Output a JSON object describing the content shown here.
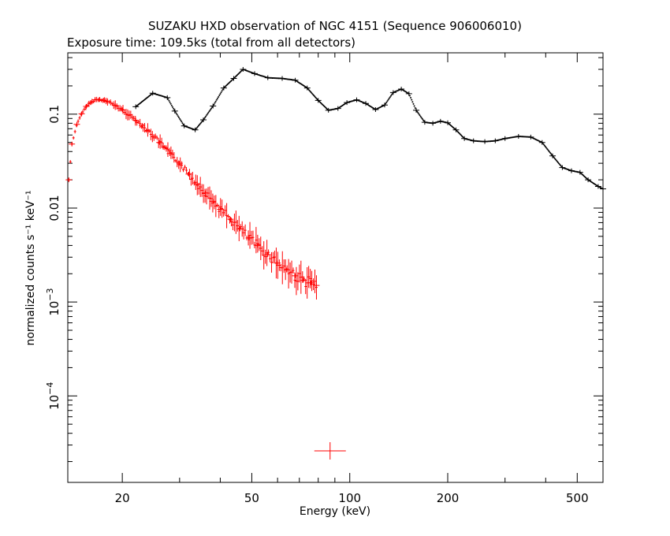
{
  "chart_data": {
    "type": "scatter",
    "title": "SUZAKU HXD observation of NGC 4151 (Sequence 906006010)",
    "subtitle": "Exposure time: 109.5ks (total from all detectors)",
    "xlabel": "Energy (keV)",
    "ylabel": "normalized counts s⁻¹ keV⁻¹",
    "x_scale": "log",
    "y_scale": "log",
    "xlim": [
      13.6,
      600
    ],
    "ylim": [
      1.2e-05,
      0.45
    ],
    "grid": false,
    "x_ticks": [
      {
        "value": 20,
        "label": "20"
      },
      {
        "value": 50,
        "label": "50"
      },
      {
        "value": 100,
        "label": "100"
      },
      {
        "value": 200,
        "label": "200"
      },
      {
        "value": 500,
        "label": "500"
      }
    ],
    "y_ticks": [
      {
        "value": 0.1,
        "label": "0.1"
      },
      {
        "value": 0.01,
        "label": "0.01"
      },
      {
        "value": 0.001,
        "base": "10",
        "exp": "−3"
      },
      {
        "value": 0.0001,
        "base": "10",
        "exp": "−4"
      }
    ],
    "series": [
      {
        "color": "#ff0000",
        "points": [
          [
            13.7,
            0.02
          ],
          [
            14.0,
            0.048
          ],
          [
            14.5,
            0.078
          ],
          [
            15.0,
            0.101
          ],
          [
            15.5,
            0.121
          ],
          [
            16.0,
            0.133
          ],
          [
            16.5,
            0.142
          ],
          [
            17.0,
            0.143
          ],
          [
            17.5,
            0.141
          ],
          [
            18.0,
            0.136
          ],
          [
            19.0,
            0.124
          ],
          [
            20.0,
            0.111
          ],
          [
            21.0,
            0.098
          ],
          [
            22.0,
            0.086
          ],
          [
            23.0,
            0.076
          ],
          [
            24.0,
            0.066
          ],
          [
            25.0,
            0.058
          ],
          [
            26.0,
            0.05
          ],
          [
            27.0,
            0.044
          ],
          [
            28.0,
            0.038
          ],
          [
            30.0,
            0.03
          ],
          [
            32.0,
            0.023
          ],
          [
            34.0,
            0.018
          ],
          [
            36.0,
            0.0145
          ],
          [
            38.0,
            0.0118
          ],
          [
            40.0,
            0.0097
          ],
          [
            43.0,
            0.0076
          ],
          [
            46.0,
            0.006
          ],
          [
            49.0,
            0.0048
          ],
          [
            52.0,
            0.004
          ],
          [
            56.0,
            0.0032
          ],
          [
            60.0,
            0.0026
          ],
          [
            64.0,
            0.0022
          ],
          [
            68.0,
            0.0019
          ],
          [
            72.0,
            0.0017
          ],
          [
            76.0,
            0.0016
          ],
          [
            79.0,
            0.0015
          ]
        ]
      },
      {
        "color": "#000000",
        "points": [
          [
            22.0,
            0.12
          ],
          [
            24.8,
            0.167
          ],
          [
            27.5,
            0.15
          ],
          [
            29.0,
            0.108
          ],
          [
            31.0,
            0.075
          ],
          [
            33.5,
            0.068
          ],
          [
            35.5,
            0.087
          ],
          [
            38.0,
            0.122
          ],
          [
            41.0,
            0.19
          ],
          [
            44.0,
            0.24
          ],
          [
            47.0,
            0.3
          ],
          [
            51.0,
            0.27
          ],
          [
            56.0,
            0.244
          ],
          [
            62.0,
            0.24
          ],
          [
            68.0,
            0.23
          ],
          [
            74.0,
            0.19
          ],
          [
            80.0,
            0.14
          ],
          [
            86.0,
            0.11
          ],
          [
            92.0,
            0.115
          ],
          [
            98.0,
            0.133
          ],
          [
            105.0,
            0.142
          ],
          [
            112.0,
            0.13
          ],
          [
            120.0,
            0.112
          ],
          [
            128.0,
            0.125
          ],
          [
            136.0,
            0.17
          ],
          [
            144.0,
            0.185
          ],
          [
            152.0,
            0.165
          ],
          [
            160.0,
            0.11
          ],
          [
            170.0,
            0.082
          ],
          [
            180.0,
            0.08
          ],
          [
            190.0,
            0.084
          ],
          [
            200.0,
            0.081
          ],
          [
            212.0,
            0.068
          ],
          [
            225.0,
            0.055
          ],
          [
            240.0,
            0.052
          ],
          [
            260.0,
            0.051
          ],
          [
            280.0,
            0.052
          ],
          [
            300.0,
            0.055
          ],
          [
            330.0,
            0.058
          ],
          [
            360.0,
            0.057
          ],
          [
            390.0,
            0.05
          ],
          [
            420.0,
            0.036
          ],
          [
            450.0,
            0.027
          ],
          [
            480.0,
            0.025
          ],
          [
            510.0,
            0.024
          ],
          [
            540.0,
            0.02
          ],
          [
            580.0,
            0.017
          ],
          [
            600.0,
            0.016
          ]
        ]
      }
    ],
    "extra_marker": {
      "color": "#ff0000",
      "x": 87,
      "y": 2.6e-05
    }
  }
}
